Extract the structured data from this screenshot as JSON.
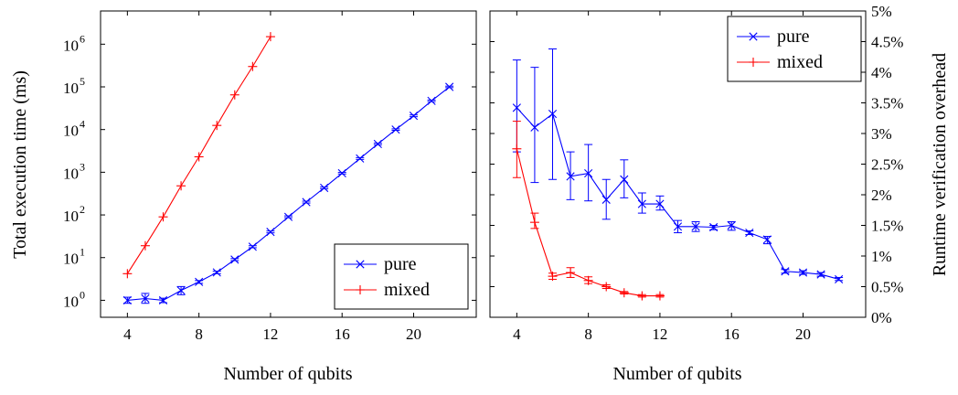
{
  "chart_data": [
    {
      "type": "line",
      "xlabel": "Number of qubits",
      "ylabel": "Total execution time (ms)",
      "yscale": "log",
      "xlim": [
        2.5,
        23.5
      ],
      "ylim": [
        0.4,
        6000000
      ],
      "x_ticks": [
        4,
        8,
        12,
        16,
        20
      ],
      "y_ticks": [
        {
          "value": 1,
          "label": "10",
          "exp": "0"
        },
        {
          "value": 10,
          "label": "10",
          "exp": "1"
        },
        {
          "value": 100,
          "label": "10",
          "exp": "2"
        },
        {
          "value": 1000,
          "label": "10",
          "exp": "3"
        },
        {
          "value": 10000,
          "label": "10",
          "exp": "4"
        },
        {
          "value": 100000,
          "label": "10",
          "exp": "5"
        },
        {
          "value": 1000000,
          "label": "10",
          "exp": "6"
        }
      ],
      "legend_position": "bottom-right",
      "series": [
        {
          "name": "pure",
          "color": "#0000ff",
          "marker": "x",
          "x": [
            4,
            5,
            6,
            7,
            8,
            9,
            10,
            11,
            12,
            13,
            14,
            15,
            16,
            17,
            18,
            19,
            20,
            21,
            22
          ],
          "y": [
            1.0,
            1.1,
            1.0,
            1.7,
            2.7,
            4.5,
            9,
            18,
            40,
            90,
            200,
            430,
            950,
            2100,
            4600,
            10000,
            21000,
            47000,
            100000
          ],
          "err_low": [
            0.85,
            0.85,
            0.88,
            1.35,
            2.5,
            4.2,
            8.5,
            17,
            38,
            86,
            190,
            410,
            910,
            2000,
            4400,
            9600,
            20000,
            45000,
            96000
          ],
          "err_high": [
            1.18,
            1.45,
            1.12,
            2.1,
            2.9,
            4.8,
            9.5,
            19,
            42,
            95,
            210,
            450,
            990,
            2200,
            4800,
            10400,
            22000,
            49000,
            104000
          ]
        },
        {
          "name": "mixed",
          "color": "#ff0000",
          "marker": "+",
          "x": [
            4,
            5,
            6,
            7,
            8,
            9,
            10,
            11,
            12
          ],
          "y": [
            4.2,
            19,
            90,
            480,
            2300,
            12500,
            65000,
            300000,
            1500000
          ]
        }
      ]
    },
    {
      "type": "line",
      "xlabel": "Number of qubits",
      "ylabel": "Runtime verification overhead",
      "xlim": [
        2.5,
        23.5
      ],
      "ylim": [
        0,
        5
      ],
      "x_ticks": [
        4,
        8,
        12,
        16,
        20
      ],
      "y_ticks": [
        "0%",
        "0.5%",
        "1%",
        "1.5%",
        "2%",
        "2.5%",
        "3%",
        "3.5%",
        "4%",
        "4.5%",
        "5%"
      ],
      "legend_position": "top-right",
      "series": [
        {
          "name": "pure",
          "color": "#0000ff",
          "marker": "x",
          "x": [
            4,
            5,
            6,
            7,
            8,
            9,
            10,
            11,
            12,
            13,
            14,
            15,
            16,
            17,
            18,
            19,
            20,
            21,
            22
          ],
          "y": [
            3.42,
            3.1,
            3.32,
            2.3,
            2.35,
            1.92,
            2.25,
            1.85,
            1.85,
            1.48,
            1.48,
            1.47,
            1.5,
            1.38,
            1.27,
            0.75,
            0.73,
            0.7,
            0.62
          ],
          "err_low": [
            2.7,
            2.2,
            2.25,
            1.92,
            1.9,
            1.6,
            1.95,
            1.7,
            1.75,
            1.38,
            1.4,
            1.43,
            1.42,
            1.35,
            1.2,
            0.72,
            0.7,
            0.67,
            0.6
          ],
          "err_high": [
            4.2,
            4.08,
            4.38,
            2.7,
            2.82,
            2.25,
            2.57,
            2.03,
            1.98,
            1.58,
            1.56,
            1.5,
            1.56,
            1.41,
            1.32,
            0.78,
            0.76,
            0.73,
            0.65
          ]
        },
        {
          "name": "mixed",
          "color": "#ff0000",
          "marker": "+",
          "x": [
            4,
            5,
            6,
            7,
            8,
            9,
            10,
            11,
            12
          ],
          "y": [
            2.75,
            1.55,
            0.67,
            0.73,
            0.6,
            0.5,
            0.4,
            0.35,
            0.35
          ],
          "err_low": [
            2.28,
            1.45,
            0.62,
            0.65,
            0.55,
            0.47,
            0.38,
            0.33,
            0.33
          ],
          "err_high": [
            3.2,
            1.7,
            0.72,
            0.81,
            0.66,
            0.53,
            0.42,
            0.37,
            0.37
          ]
        }
      ]
    }
  ]
}
